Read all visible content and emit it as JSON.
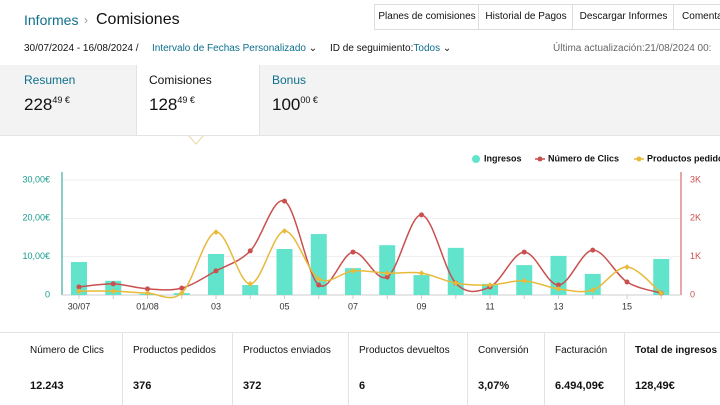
{
  "header": {
    "breadcrumb": "Informes",
    "title": "Comisiones",
    "buttons": [
      "Planes de comisiones",
      "Historial de Pagos",
      "Descargar Informes",
      "Comentar"
    ]
  },
  "filters": {
    "date_range": "30/07/2024 - 16/08/2024 /",
    "range_type": "Intervalo de Fechas Personalizado",
    "tracking_label": "ID de seguimiento:",
    "tracking_value": "Todos",
    "last_update": "Última actualización:21/08/2024 00:"
  },
  "tabs": [
    {
      "label": "Resumen",
      "whole": "228",
      "fraction": "49 €"
    },
    {
      "label": "Comisiones",
      "whole": "128",
      "fraction": "49 €"
    },
    {
      "label": "Bonus",
      "whole": "100",
      "fraction": "00 €"
    }
  ],
  "chart": {
    "type": "bar-line",
    "categories": [
      "30/07",
      null,
      "01/08",
      null,
      "03",
      null,
      "05",
      null,
      "07",
      null,
      "09",
      null,
      "11",
      null,
      "13",
      null,
      "15",
      null
    ],
    "series": [
      {
        "name": "Ingresos",
        "color": "#62e3cb",
        "kind": "bar",
        "axis": "y",
        "values": [
          8.6,
          3.7,
          0.3,
          0.5,
          10.7,
          2.6,
          12.0,
          15.9,
          7.0,
          13.0,
          5.2,
          12.3,
          2.9,
          7.8,
          10.2,
          5.5,
          0,
          9.4
        ]
      },
      {
        "name": "Número de Clics",
        "color": "#c9504f",
        "kind": "line",
        "axis": "y2",
        "values": [
          210,
          290,
          160,
          180,
          630,
          1150,
          2450,
          260,
          1120,
          470,
          2090,
          310,
          210,
          1120,
          260,
          1170,
          340,
          50
        ]
      },
      {
        "name": "Productos pedidos",
        "color": "#e8b93a",
        "kind": "line",
        "axis": "y",
        "values": [
          1,
          1,
          0.5,
          0.5,
          16.4,
          2.9,
          16.7,
          4.2,
          6.3,
          5.7,
          5.7,
          3.1,
          2.6,
          3.7,
          1.6,
          1.3,
          7.3,
          0.5
        ]
      }
    ],
    "ylim": [
      0,
      30
    ],
    "yticks": [
      0,
      {
        "value": 10,
        "label": "10,00€"
      },
      {
        "value": 20,
        "label": "20,00€"
      },
      {
        "value": 30,
        "label": "30,00€"
      }
    ],
    "y2lim": [
      0,
      3000
    ],
    "y2ticks": [
      0,
      {
        "value": 1000,
        "label": "1K"
      },
      {
        "value": 2000,
        "label": "2K"
      },
      {
        "value": 3000,
        "label": "3K"
      }
    ]
  },
  "summary": {
    "headers": [
      "Número de Clics",
      "Productos pedidos",
      "Productos enviados",
      "Productos devueltos",
      "Conversión",
      "Facturación",
      "Total de ingresos"
    ],
    "values": [
      "12.243",
      "376",
      "372",
      "6",
      "3,07%",
      "6.494,09€",
      "128,49€"
    ]
  }
}
